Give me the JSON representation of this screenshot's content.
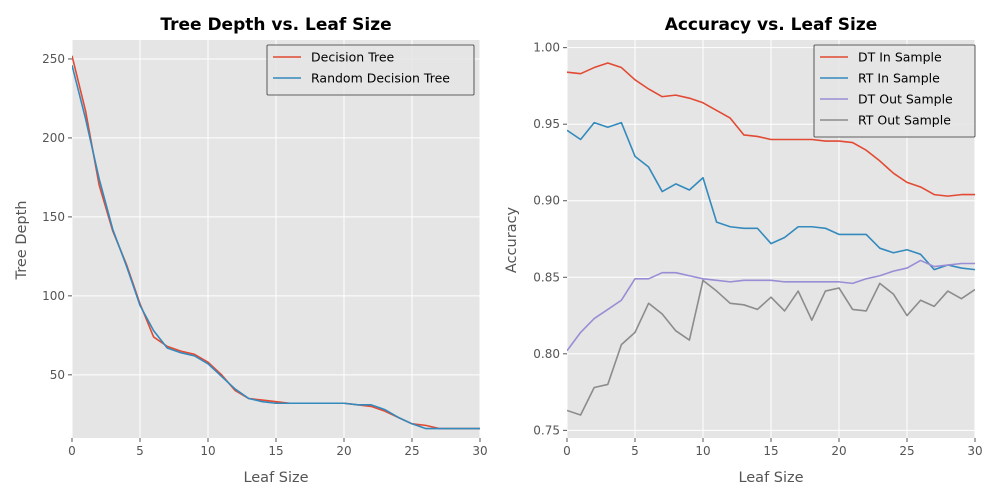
{
  "chart_data": [
    {
      "type": "line",
      "title": "Tree Depth vs. Leaf Size",
      "xlabel": "Leaf Size",
      "ylabel": "Tree Depth",
      "xlim": [
        0,
        30
      ],
      "ylim": [
        10,
        262
      ],
      "xticks": [
        0,
        5,
        10,
        15,
        20,
        25,
        30
      ],
      "yticks": [
        50,
        100,
        150,
        200,
        250
      ],
      "grid": true,
      "legend": "top-right",
      "x": [
        0,
        1,
        2,
        3,
        4,
        5,
        6,
        7,
        8,
        9,
        10,
        11,
        12,
        13,
        14,
        15,
        16,
        17,
        18,
        19,
        20,
        21,
        22,
        23,
        24,
        25,
        26,
        27,
        28,
        29,
        30
      ],
      "series": [
        {
          "name": "Decision Tree",
          "color": "#e24a33",
          "values": [
            252,
            217,
            170,
            141,
            120,
            95,
            74,
            68,
            65,
            63,
            58,
            50,
            40,
            35,
            34,
            33,
            32,
            32,
            32,
            32,
            32,
            31,
            30,
            27,
            23,
            19,
            18,
            16,
            16,
            16,
            16
          ]
        },
        {
          "name": "Random Decision Tree",
          "color": "#348abd",
          "values": [
            246,
            212,
            174,
            142,
            119,
            94,
            78,
            67,
            64,
            62,
            57,
            49,
            41,
            35,
            33,
            32,
            32,
            32,
            32,
            32,
            32,
            31,
            31,
            28,
            23,
            19,
            16,
            16,
            16,
            16,
            16
          ]
        }
      ]
    },
    {
      "type": "line",
      "title": "Accuracy vs. Leaf Size",
      "xlabel": "Leaf Size",
      "ylabel": "Accuracy",
      "xlim": [
        0,
        30
      ],
      "ylim": [
        0.745,
        1.005
      ],
      "xticks": [
        0,
        5,
        10,
        15,
        20,
        25,
        30
      ],
      "yticks": [
        "0.75",
        "0.80",
        "0.85",
        "0.90",
        "0.95",
        "1.00"
      ],
      "grid": true,
      "legend": "top-right",
      "x": [
        0,
        1,
        2,
        3,
        4,
        5,
        6,
        7,
        8,
        9,
        10,
        11,
        12,
        13,
        14,
        15,
        16,
        17,
        18,
        19,
        20,
        21,
        22,
        23,
        24,
        25,
        26,
        27,
        28,
        29,
        30
      ],
      "series": [
        {
          "name": "DT In Sample",
          "color": "#e24a33",
          "values": [
            0.984,
            0.983,
            0.987,
            0.99,
            0.987,
            0.979,
            0.973,
            0.968,
            0.969,
            0.967,
            0.964,
            0.959,
            0.954,
            0.943,
            0.942,
            0.94,
            0.94,
            0.94,
            0.94,
            0.939,
            0.939,
            0.938,
            0.933,
            0.926,
            0.918,
            0.912,
            0.909,
            0.904,
            0.903,
            0.904,
            0.904
          ]
        },
        {
          "name": "RT In Sample",
          "color": "#348abd",
          "values": [
            0.946,
            0.94,
            0.951,
            0.948,
            0.951,
            0.929,
            0.922,
            0.906,
            0.911,
            0.907,
            0.915,
            0.886,
            0.883,
            0.882,
            0.882,
            0.872,
            0.876,
            0.883,
            0.883,
            0.882,
            0.878,
            0.878,
            0.878,
            0.869,
            0.866,
            0.868,
            0.865,
            0.855,
            0.858,
            0.856,
            0.855
          ]
        },
        {
          "name": "DT Out Sample",
          "color": "#988ed5",
          "values": [
            0.802,
            0.814,
            0.823,
            0.829,
            0.835,
            0.849,
            0.849,
            0.853,
            0.853,
            0.851,
            0.849,
            0.848,
            0.847,
            0.848,
            0.848,
            0.848,
            0.847,
            0.847,
            0.847,
            0.847,
            0.847,
            0.846,
            0.849,
            0.851,
            0.854,
            0.856,
            0.861,
            0.857,
            0.858,
            0.859,
            0.859
          ]
        },
        {
          "name": "RT Out Sample",
          "color": "#8c8c8c",
          "values": [
            0.763,
            0.76,
            0.778,
            0.78,
            0.806,
            0.814,
            0.833,
            0.826,
            0.815,
            0.809,
            0.848,
            0.841,
            0.833,
            0.832,
            0.829,
            0.837,
            0.828,
            0.841,
            0.822,
            0.841,
            0.843,
            0.829,
            0.828,
            0.846,
            0.839,
            0.825,
            0.835,
            0.831,
            0.841,
            0.836,
            0.842
          ]
        }
      ]
    }
  ]
}
